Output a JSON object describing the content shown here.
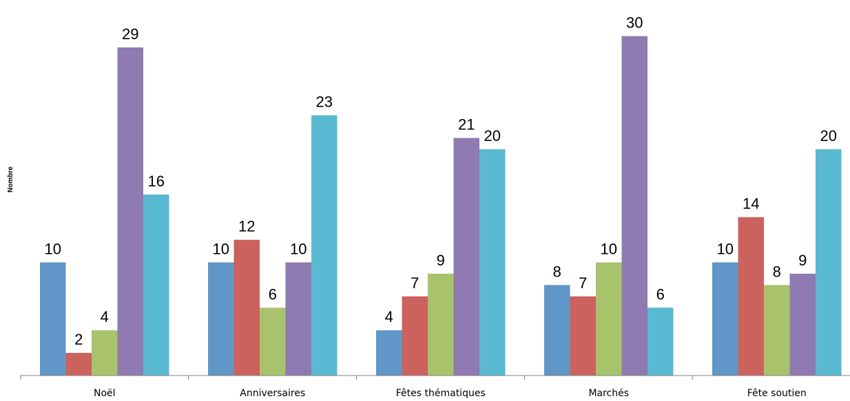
{
  "chart_data": {
    "type": "bar",
    "title": "",
    "xlabel": "",
    "ylabel": "Nombre",
    "categories": [
      "Noël",
      "Anniversaires",
      "Fêtes thématiques",
      "Marchés",
      "Fête soutien"
    ],
    "series": [
      {
        "color": "#6096c8",
        "values": [
          10,
          10,
          4,
          8,
          10
        ]
      },
      {
        "color": "#cc625d",
        "values": [
          2,
          12,
          7,
          7,
          14
        ]
      },
      {
        "color": "#a8c36b",
        "values": [
          4,
          6,
          9,
          10,
          8
        ]
      },
      {
        "color": "#8f7ab2",
        "values": [
          29,
          10,
          21,
          30,
          9
        ]
      },
      {
        "color": "#58b9d1",
        "values": [
          16,
          23,
          20,
          6,
          20
        ]
      }
    ],
    "ylim": [
      0,
      32
    ],
    "grid": false,
    "data_labels": true,
    "legend": "none"
  }
}
